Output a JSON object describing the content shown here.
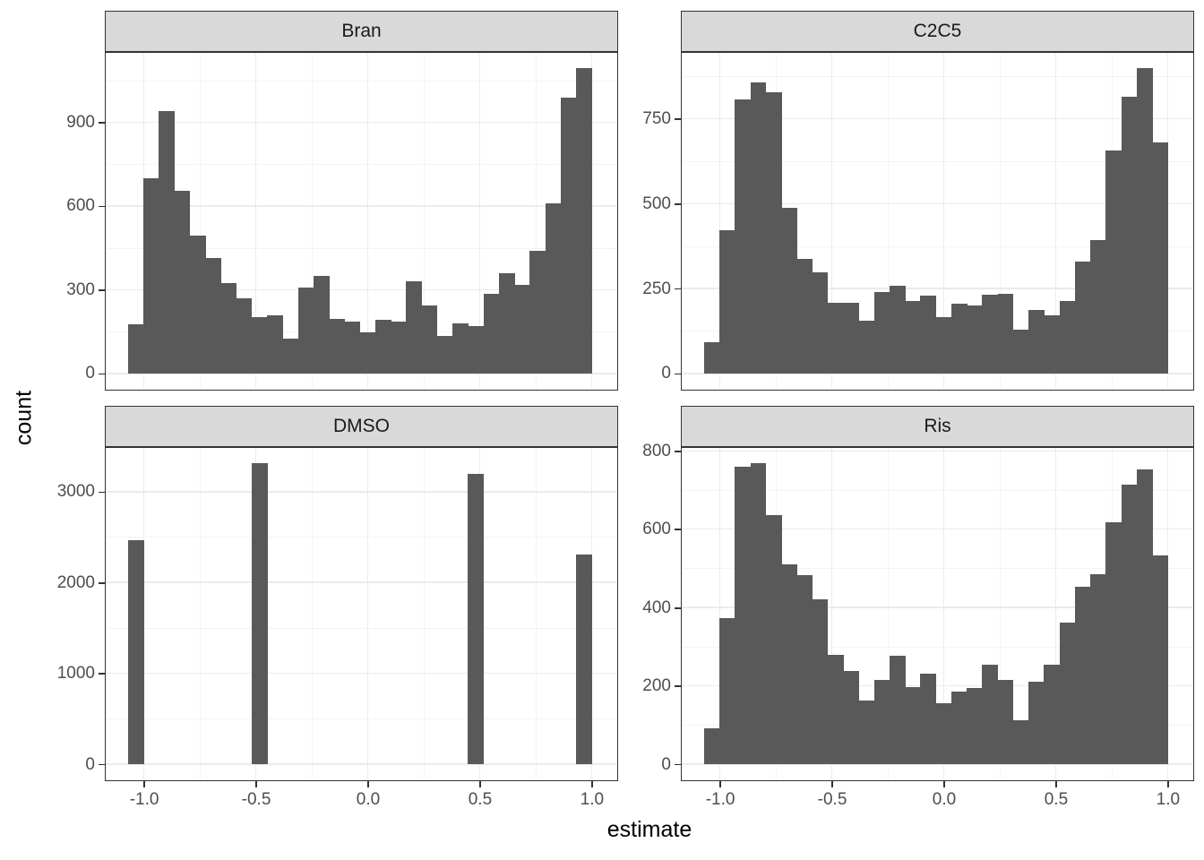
{
  "figure": {
    "x_axis_title": "estimate",
    "y_axis_title": "count",
    "colors": {
      "bar_fill": "#595959",
      "strip_background": "#d9d9d9",
      "panel_border": "#333333",
      "grid_major": "#ebebeb",
      "grid_minor": "#f3f3f3",
      "tick_text": "#4d4d4d",
      "axis_title_text": "#000000",
      "strip_text": "#1a1a1a"
    }
  },
  "chart_data": {
    "type": "bar",
    "subtype": "faceted-histogram",
    "title": "",
    "xlabel": "estimate",
    "ylabel": "count",
    "grid": true,
    "legend": false,
    "x": {
      "domain": [
        -1.17,
        1.11
      ],
      "bin_start": -1.07,
      "bin_width": 0.069,
      "n_bins": 30,
      "tick_values": [
        -1.0,
        -0.5,
        0.0,
        0.5,
        1.0
      ],
      "tick_labels": [
        "-1.0",
        "-0.5",
        "0.0",
        "0.5",
        "1.0"
      ],
      "minor_values": [
        -0.75,
        -0.25,
        0.25,
        0.75
      ]
    },
    "facets": [
      {
        "label": "Bran",
        "y_tick_values": [
          0,
          300,
          600,
          900
        ],
        "y_tick_labels": [
          "0",
          "300",
          "600",
          "900"
        ],
        "values": [
          175,
          698,
          941,
          655,
          494,
          414,
          325,
          268,
          203,
          207,
          126,
          306,
          349,
          196,
          186,
          147,
          191,
          187,
          331,
          244,
          135,
          179,
          170,
          284,
          360,
          316,
          439,
          610,
          989,
          1094
        ]
      },
      {
        "label": "C2C5",
        "y_tick_values": [
          0,
          250,
          500,
          750
        ],
        "y_tick_labels": [
          "0",
          "250",
          "500",
          "750"
        ],
        "values": [
          92,
          421,
          808,
          858,
          828,
          487,
          336,
          298,
          208,
          209,
          155,
          240,
          259,
          214,
          230,
          165,
          206,
          201,
          231,
          234,
          129,
          188,
          171,
          212,
          330,
          392,
          656,
          814,
          899,
          680
        ]
      },
      {
        "label": "DMSO",
        "y_tick_values": [
          0,
          1000,
          2000,
          3000
        ],
        "y_tick_labels": [
          "0",
          "1000",
          "2000",
          "3000"
        ],
        "values": [
          2465,
          0,
          0,
          0,
          0,
          0,
          0,
          0,
          3315,
          0,
          0,
          0,
          0,
          0,
          0,
          0,
          0,
          0,
          0,
          0,
          0,
          0,
          3190,
          0,
          0,
          0,
          0,
          0,
          0,
          2305
        ]
      },
      {
        "label": "Ris",
        "y_tick_values": [
          0,
          200,
          400,
          600,
          800
        ],
        "y_tick_labels": [
          "0",
          "200",
          "400",
          "600",
          "800"
        ],
        "values": [
          92,
          373,
          760,
          769,
          635,
          509,
          483,
          420,
          278,
          239,
          163,
          216,
          277,
          196,
          231,
          155,
          186,
          194,
          254,
          215,
          113,
          210,
          255,
          362,
          452,
          486,
          618,
          714,
          752,
          533
        ]
      }
    ]
  }
}
